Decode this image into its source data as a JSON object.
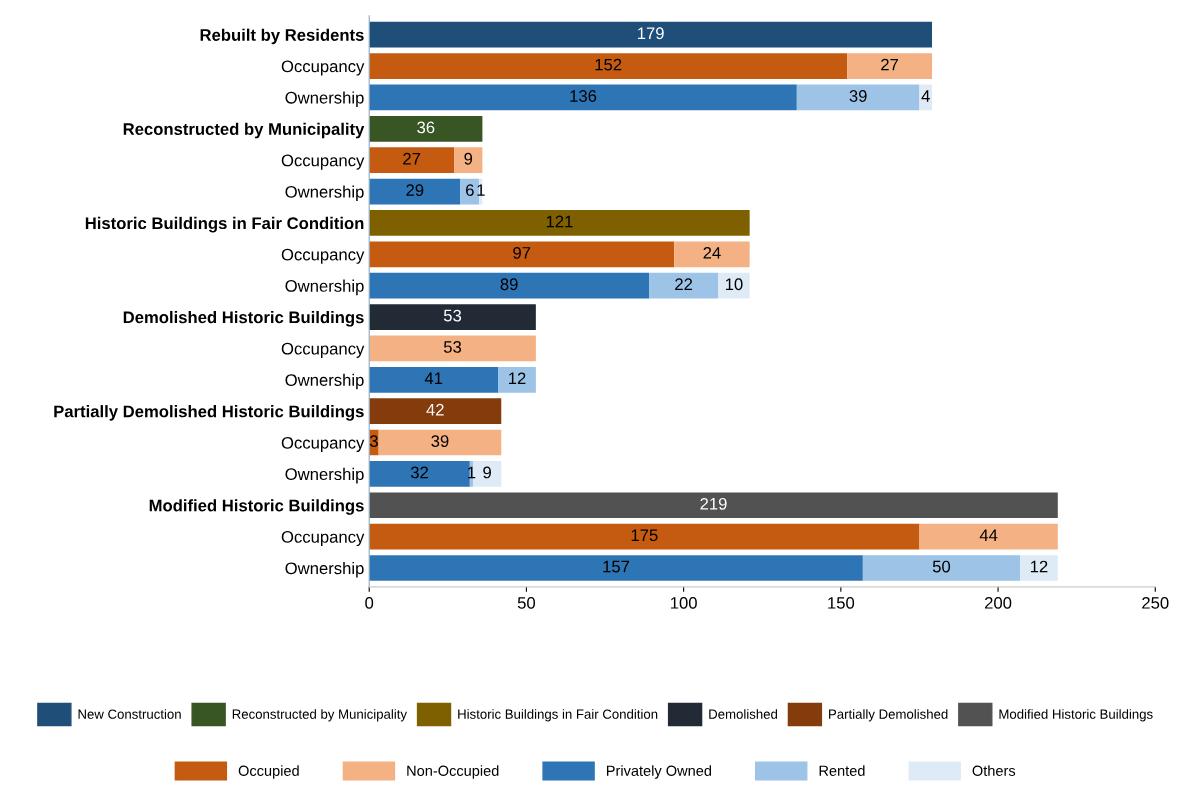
{
  "chart_data": {
    "type": "bar",
    "orientation": "horizontal",
    "stacked": true,
    "data_labels": true,
    "grid": false,
    "legend": "bottom",
    "categories": [
      "Rebuilt by Residents",
      "Occupancy",
      "Ownership",
      "Reconstructed by Municipality",
      "Occupancy",
      "Ownership",
      "Historic Buildings in Fair Condition",
      "Occupancy",
      "Ownership",
      "Demolished Historic Buildings",
      "Occupancy",
      "Ownership",
      "Partially Demolished Historic Buildings",
      "Occupancy",
      "Ownership",
      "Modified Historic Buildings",
      "Occupancy",
      "Ownership"
    ],
    "xlim": [
      0,
      250
    ],
    "xticks": [
      0,
      50,
      100,
      150,
      200,
      250
    ],
    "series": [
      {
        "name": "New Construction",
        "color": "#1f4e79",
        "values": [
          179,
          null,
          null,
          null,
          null,
          null,
          null,
          null,
          null,
          null,
          null,
          null,
          null,
          null,
          null,
          null,
          null,
          null
        ]
      },
      {
        "name": "Reconstructed by Municipality",
        "color": "#375623",
        "values": [
          null,
          null,
          null,
          36,
          null,
          null,
          null,
          null,
          null,
          null,
          null,
          null,
          null,
          null,
          null,
          null,
          null,
          null
        ]
      },
      {
        "name": "Historic Buildings in Fair Condition",
        "color": "#7f6000",
        "values": [
          null,
          null,
          null,
          null,
          null,
          null,
          121,
          null,
          null,
          null,
          null,
          null,
          null,
          null,
          null,
          null,
          null,
          null
        ]
      },
      {
        "name": "Demolished",
        "color": "#222a35",
        "values": [
          null,
          null,
          null,
          null,
          null,
          null,
          null,
          null,
          null,
          53,
          null,
          null,
          null,
          null,
          null,
          null,
          null,
          null
        ]
      },
      {
        "name": "Partially Demolished",
        "color": "#843c0c",
        "values": [
          null,
          null,
          null,
          null,
          null,
          null,
          null,
          null,
          null,
          null,
          null,
          null,
          42,
          null,
          null,
          null,
          null,
          null
        ]
      },
      {
        "name": "Modified Historic Buildings",
        "color": "#525252",
        "values": [
          null,
          null,
          null,
          null,
          null,
          null,
          null,
          null,
          null,
          null,
          null,
          null,
          null,
          null,
          null,
          219,
          null,
          null
        ]
      },
      {
        "name": "Occupied",
        "color": "#c55a11",
        "values": [
          null,
          152,
          null,
          null,
          27,
          null,
          null,
          97,
          null,
          null,
          null,
          null,
          null,
          3,
          null,
          null,
          175,
          null
        ]
      },
      {
        "name": "Non-Occupied",
        "color": "#f4b183",
        "values": [
          null,
          27,
          null,
          null,
          9,
          null,
          null,
          24,
          null,
          null,
          53,
          null,
          null,
          39,
          null,
          null,
          44,
          null
        ]
      },
      {
        "name": "Privately Owned",
        "color": "#2e75b6",
        "values": [
          null,
          null,
          136,
          null,
          null,
          29,
          null,
          null,
          89,
          null,
          null,
          41,
          null,
          null,
          32,
          null,
          null,
          157
        ]
      },
      {
        "name": "Rented",
        "color": "#9dc3e6",
        "values": [
          null,
          null,
          39,
          null,
          null,
          6,
          null,
          null,
          22,
          null,
          null,
          12,
          null,
          null,
          1,
          null,
          null,
          50
        ]
      },
      {
        "name": "Others",
        "color": "#deebf7",
        "values": [
          null,
          null,
          4,
          null,
          null,
          1,
          null,
          null,
          10,
          null,
          null,
          null,
          null,
          null,
          9,
          null,
          null,
          12
        ]
      }
    ]
  }
}
